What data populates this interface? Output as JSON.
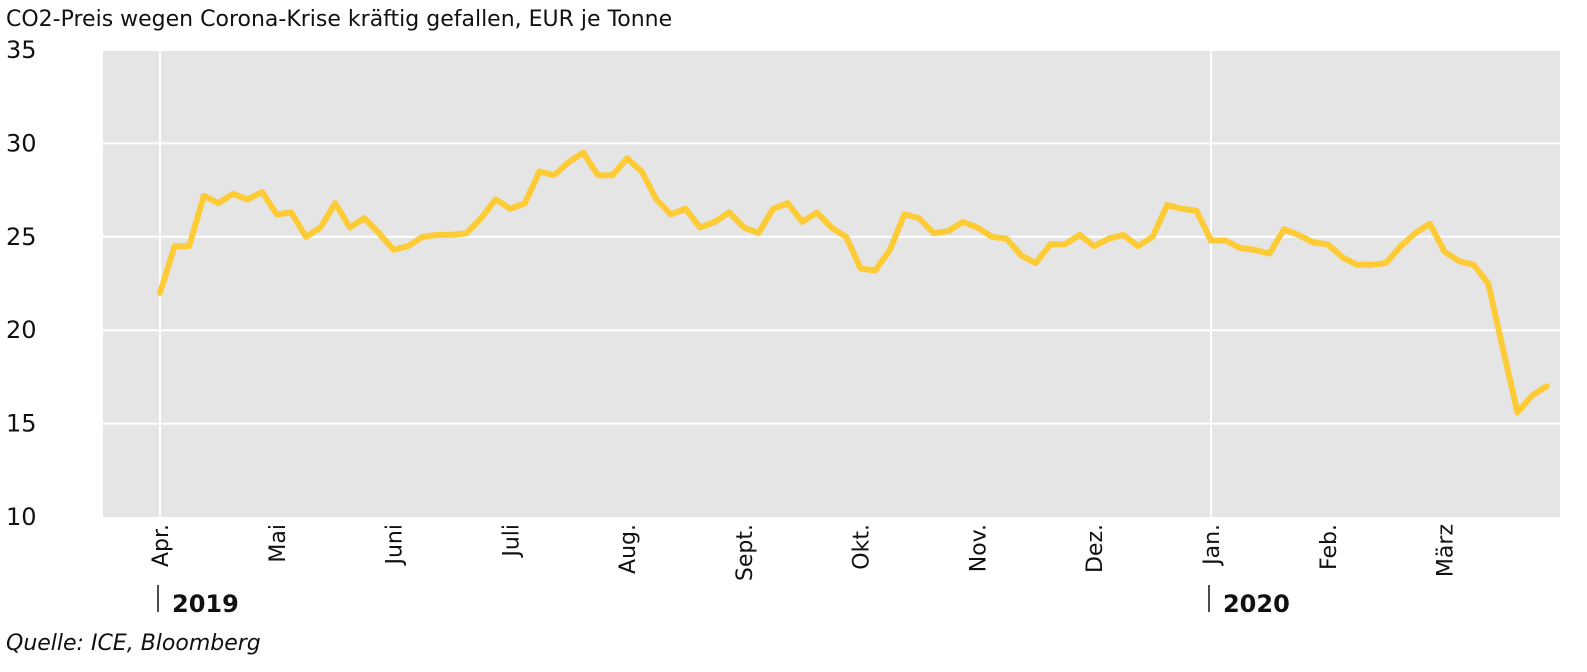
{
  "chart_data": {
    "type": "line",
    "title": "CO2-Preis wegen Corona-Krise kräftig gefallen, EUR je Tonne",
    "source": "Quelle: ICE, Bloomberg",
    "categories": [
      "Apr.",
      null,
      null,
      null,
      null,
      null,
      null,
      null,
      "Mai",
      null,
      null,
      null,
      null,
      null,
      null,
      null,
      "Juni",
      null,
      null,
      null,
      null,
      null,
      null,
      null,
      "Juli",
      null,
      null,
      null,
      null,
      null,
      null,
      null,
      "Aug.",
      null,
      null,
      null,
      null,
      null,
      null,
      null,
      "Sept.",
      null,
      null,
      null,
      null,
      null,
      null,
      null,
      "Okt.",
      null,
      null,
      null,
      null,
      null,
      null,
      null,
      "Nov.",
      null,
      null,
      null,
      null,
      null,
      null,
      null,
      "Dez.",
      null,
      null,
      null,
      null,
      null,
      null,
      null,
      "Jan.",
      null,
      null,
      null,
      null,
      null,
      null,
      null,
      "Feb.",
      null,
      null,
      null,
      null,
      null,
      null,
      null,
      "März",
      null,
      null,
      null,
      null,
      null,
      null,
      null
    ],
    "category_years": [
      "2019",
      null,
      null,
      null,
      null,
      null,
      null,
      null,
      null,
      null,
      null,
      null,
      null,
      null,
      null,
      null,
      null,
      null,
      null,
      null,
      null,
      null,
      null,
      null,
      null,
      null,
      null,
      null,
      null,
      null,
      null,
      null,
      null,
      null,
      null,
      null,
      null,
      null,
      null,
      null,
      null,
      null,
      null,
      null,
      null,
      null,
      null,
      null,
      null,
      null,
      null,
      null,
      null,
      null,
      null,
      null,
      null,
      null,
      null,
      null,
      null,
      null,
      null,
      null,
      null,
      null,
      null,
      null,
      null,
      null,
      null,
      null,
      "2020",
      null,
      null,
      null,
      null,
      null,
      null,
      null,
      null,
      null,
      null,
      null,
      null,
      null,
      null,
      null,
      null,
      null,
      null,
      null,
      null,
      null,
      null,
      null
    ],
    "values": [
      22.0,
      24.5,
      24.5,
      27.2,
      26.8,
      27.3,
      27.0,
      27.4,
      26.2,
      26.3,
      25.0,
      25.5,
      26.8,
      25.5,
      26.0,
      25.2,
      24.3,
      24.5,
      25.0,
      25.1,
      25.1,
      25.2,
      26.0,
      27.0,
      26.5,
      26.8,
      28.5,
      28.3,
      29.0,
      29.5,
      28.3,
      28.3,
      29.2,
      28.5,
      27.0,
      26.2,
      26.5,
      25.5,
      25.8,
      26.3,
      25.5,
      25.2,
      26.5,
      26.8,
      25.8,
      26.3,
      25.5,
      25.0,
      23.3,
      23.2,
      24.3,
      26.2,
      26.0,
      25.2,
      25.3,
      25.8,
      25.5,
      25.0,
      24.9,
      24.0,
      23.6,
      24.6,
      24.6,
      25.1,
      24.5,
      24.9,
      25.1,
      24.5,
      25.0,
      26.7,
      26.5,
      26.4,
      24.8,
      24.8,
      24.4,
      24.3,
      24.1,
      25.4,
      25.1,
      24.7,
      24.6,
      23.9,
      23.5,
      23.5,
      23.6,
      24.5,
      25.2,
      25.7,
      24.2,
      23.7,
      23.5,
      22.5,
      19.0,
      15.6,
      16.5,
      17.0
    ],
    "color": "#fccb36",
    "ylim": [
      10,
      35
    ],
    "yticks": [
      10,
      15,
      20,
      25,
      30,
      35
    ],
    "grid": true
  }
}
